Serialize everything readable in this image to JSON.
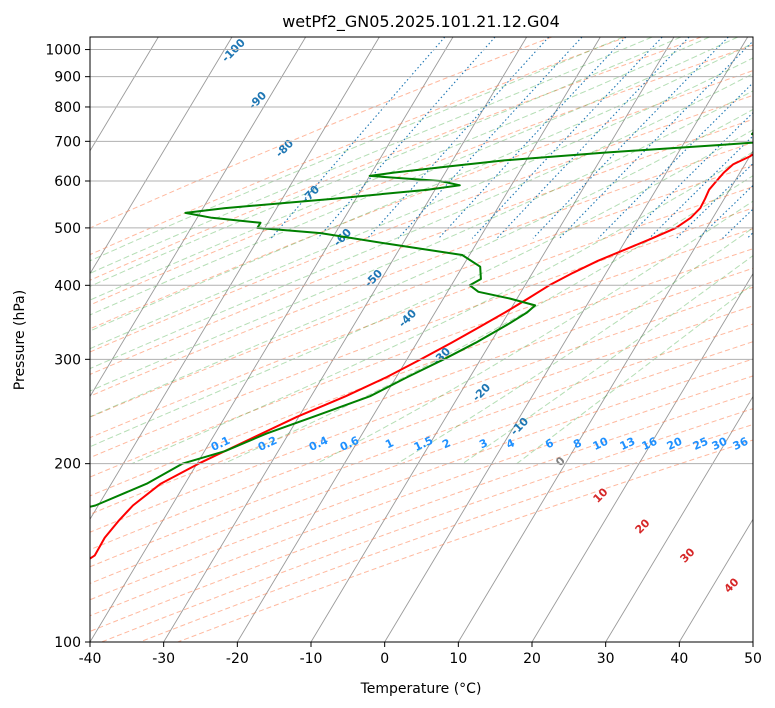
{
  "chart_data": {
    "type": "skew-t",
    "title": "wetPf2_GN05.2025.101.21.12.G04",
    "xlabel": "Temperature (°C)",
    "ylabel": "Pressure (hPa)",
    "xlim": [
      -40,
      50
    ],
    "ylim_hpa": [
      1050,
      100
    ],
    "y_scale": "log",
    "grid": true,
    "x_ticks": [
      -40,
      -30,
      -20,
      -10,
      0,
      10,
      20,
      30,
      40,
      50
    ],
    "y_ticks": [
      100,
      200,
      300,
      400,
      500,
      600,
      700,
      800,
      900,
      1000
    ],
    "colors": {
      "temperature": "#ff0000",
      "dewpoint": "#008000",
      "dry_adiabat": "#ff7f50",
      "moist_adiabat": "#2ca02c",
      "mixing_ratio": "#1f77b4",
      "mixing_label": "#1e90ff",
      "isotherm_label": "#1f77b4",
      "theta_e_label": "#d62728"
    },
    "series": [
      {
        "key": "temperature",
        "pressure": [
          965,
          940,
          910,
          880,
          850,
          820,
          800,
          780,
          760,
          740,
          720,
          700,
          680,
          660,
          640,
          620,
          600,
          580,
          560,
          540,
          520,
          500,
          480,
          460,
          440,
          420,
          400,
          380,
          360,
          340,
          320,
          300,
          280,
          260,
          240,
          220,
          200,
          185,
          170,
          160,
          150,
          140,
          130,
          120,
          110,
          100
        ],
        "temp": [
          15.2,
          15.0,
          14.6,
          14.9,
          14.2,
          13.5,
          13.0,
          12.6,
          12.5,
          12.8,
          12.4,
          11.8,
          11.0,
          10.0,
          8.4,
          7.8,
          7.5,
          7.2,
          7.4,
          7.5,
          7.0,
          5.8,
          3.4,
          0.7,
          -2.1,
          -4.5,
          -6.7,
          -8.5,
          -10.5,
          -12.8,
          -15.3,
          -18.1,
          -21.3,
          -25.3,
          -30.2,
          -34.8,
          -39.8,
          -43.3,
          -45.3,
          -46.0,
          -46.5,
          -46.4,
          -48.8,
          -51.8,
          -57.2,
          -63.3
        ]
      },
      {
        "key": "dewpoint",
        "pressure": [
          965,
          950,
          930,
          900,
          870,
          850,
          820,
          800,
          780,
          760,
          740,
          720,
          700,
          690,
          670,
          650,
          635,
          620,
          612,
          600,
          590,
          580,
          560,
          540,
          530,
          520,
          510,
          500,
          490,
          470,
          450,
          430,
          410,
          400,
          390,
          380,
          370,
          360,
          345,
          320,
          300,
          280,
          260,
          240,
          225,
          210,
          200,
          185,
          170,
          160,
          150,
          140,
          130,
          120,
          110,
          100
        ],
        "dew": [
          11.0,
          10.0,
          10.6,
          11.0,
          12.0,
          12.1,
          12.5,
          12.6,
          11.7,
          10.0,
          8.8,
          8.5,
          11.7,
          5.0,
          -10.0,
          -23.0,
          -30.0,
          -37.0,
          -40.0,
          -30.0,
          -27.0,
          -31.0,
          -43.0,
          -57.0,
          -62.0,
          -58.0,
          -51.0,
          -51.0,
          -42.0,
          -32.0,
          -21.0,
          -17.6,
          -16.5,
          -17.5,
          -15.8,
          -11.0,
          -7.0,
          -7.5,
          -9.0,
          -12.0,
          -15.0,
          -18.5,
          -22.0,
          -28.0,
          -33.0,
          -37.2,
          -42.0,
          -45.2,
          -50.4,
          -58.0,
          -64.2,
          -66.8,
          -64.0,
          -60.2,
          -58.5,
          -57.0
        ]
      }
    ],
    "isotherm_labels": [
      -100,
      -90,
      -80,
      -70,
      -60,
      -50,
      -40,
      -30,
      -20,
      -10
    ],
    "mixing_ratio_labels": [
      "0.1",
      "0.2",
      "0.4",
      "0.6",
      "1",
      "1.5",
      "2",
      "3",
      "4",
      "6",
      "8",
      "10",
      "13",
      "16",
      "20",
      "25",
      "30",
      "36"
    ],
    "theta_e_labels": [
      "0",
      "10",
      "20",
      "30",
      "40"
    ]
  }
}
